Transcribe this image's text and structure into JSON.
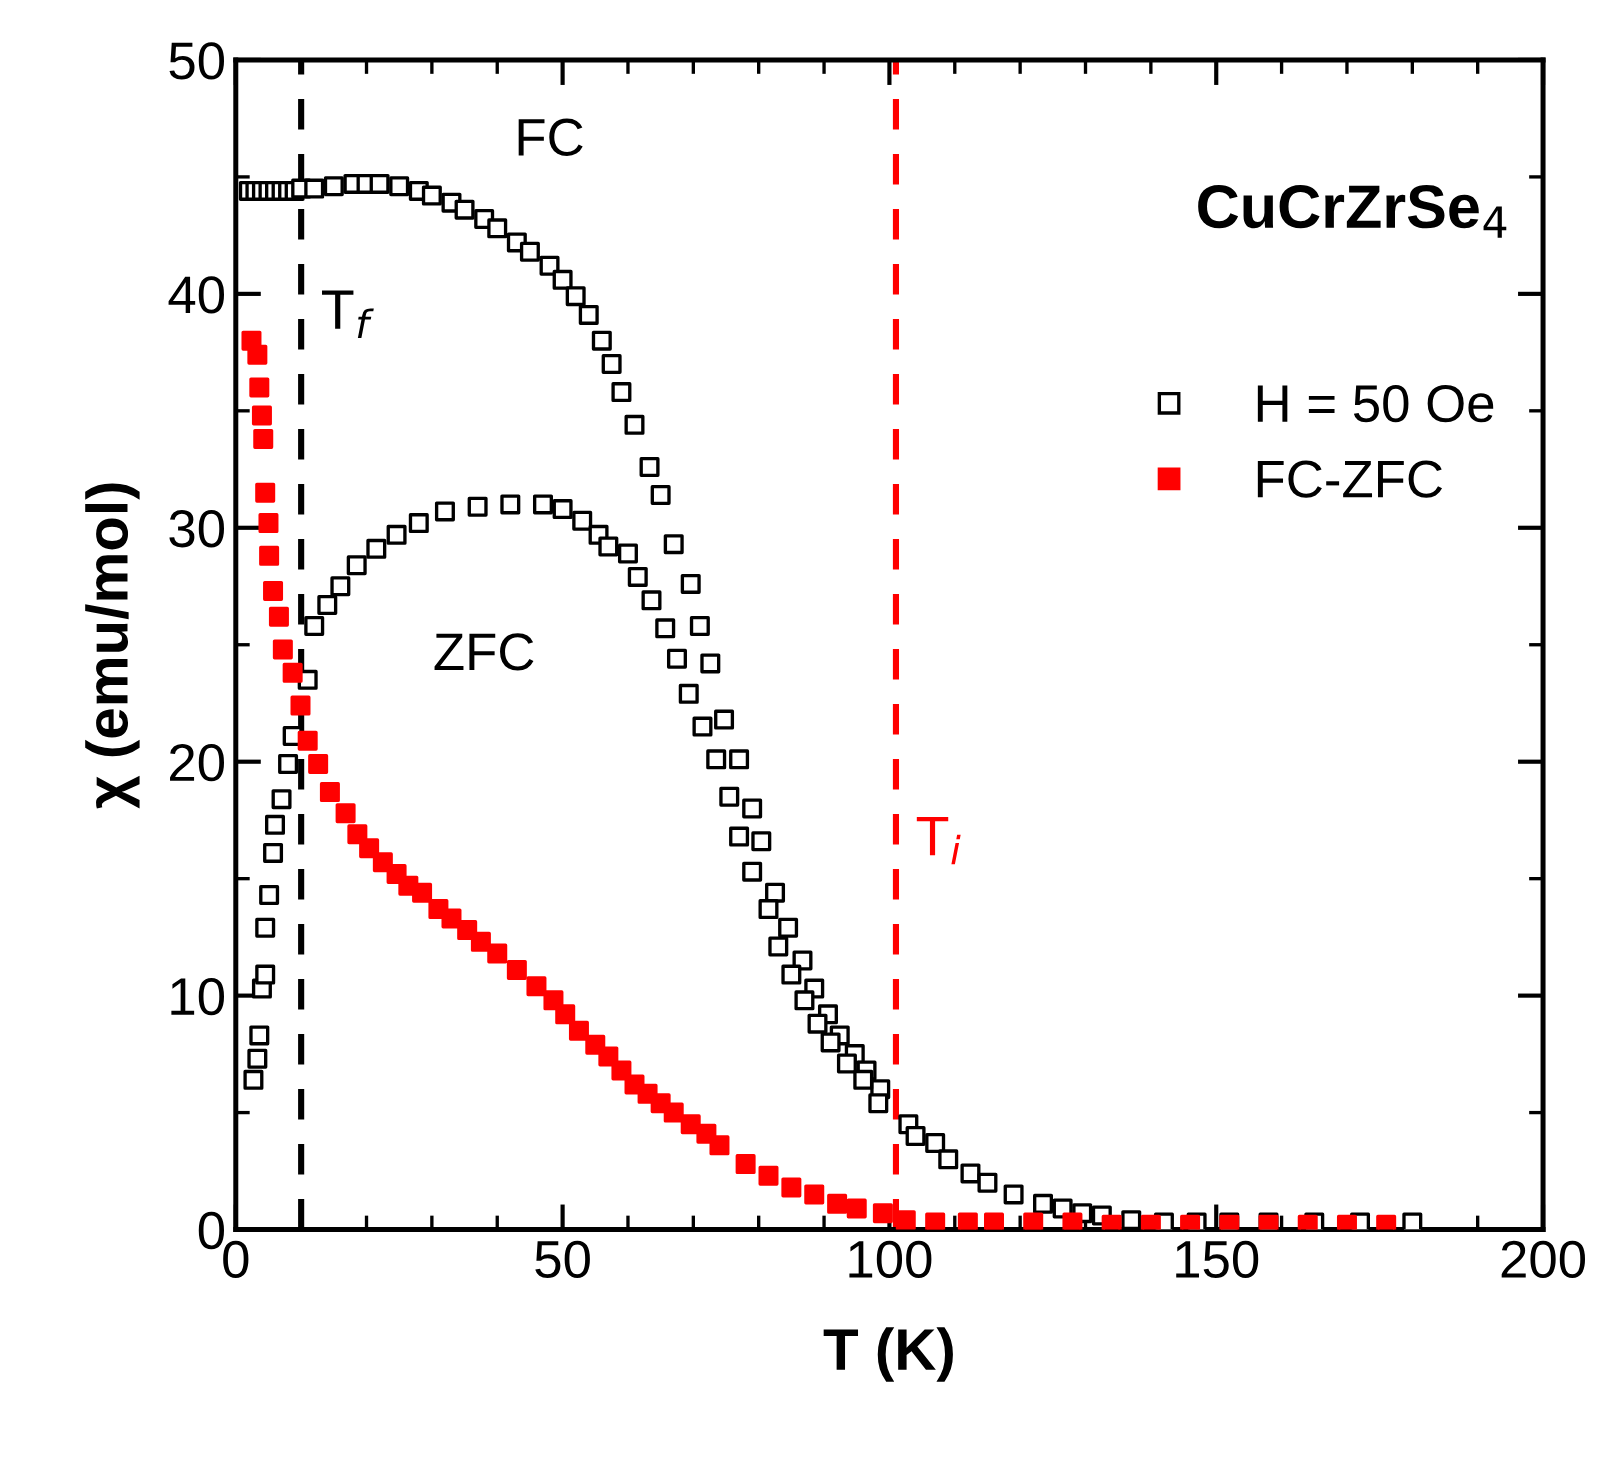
{
  "chart_data": {
    "type": "scatter",
    "xlabel": "T (K)",
    "ylabel": "χ (emu/mol)",
    "xlim": [
      0,
      200
    ],
    "ylim": [
      0,
      50
    ],
    "xticks": [
      0,
      50,
      100,
      150,
      200
    ],
    "yticks": [
      0,
      10,
      20,
      30,
      40,
      50
    ],
    "marker": "square",
    "legend": "right",
    "grid": false,
    "annotations": [
      "FC",
      "ZFC",
      "CuCrZrSe$_{4}$"
    ],
    "ref_lines": [
      {
        "axis": "x",
        "value": 10,
        "label": "T$_{f}$",
        "color": "#000000",
        "line_style": "dashed"
      },
      {
        "axis": "x",
        "value": 101,
        "label": "T$_{i}$",
        "color": "#ff0000",
        "line_style": "dashed"
      }
    ],
    "series": [
      {
        "name": "H = 50 Oe",
        "color": "#000000",
        "x": [
          2,
          3,
          4,
          5,
          6,
          7,
          8,
          9,
          10,
          12,
          15,
          18,
          20,
          22,
          25,
          28,
          30,
          33,
          35,
          38,
          40,
          43,
          45,
          48,
          50,
          52,
          54,
          56,
          57.5,
          59,
          61,
          63.3,
          65,
          67,
          69.6,
          71,
          72.6,
          74.7,
          77,
          79,
          80.4,
          82.5,
          84.5,
          86.7,
          88.5,
          90.6,
          92.4,
          94.7,
          96.5,
          98.6,
          102.9,
          104,
          107,
          109,
          112.4,
          115,
          119,
          123.5,
          126.5,
          129.5,
          132.5,
          137,
          142,
          147,
          152,
          158,
          165,
          172,
          180
        ],
        "values": [
          44.4,
          44.4,
          44.4,
          44.4,
          44.4,
          44.4,
          44.4,
          44.4,
          44.5,
          44.5,
          44.6,
          44.7,
          44.7,
          44.7,
          44.6,
          44.4,
          44.2,
          43.9,
          43.6,
          43.2,
          42.8,
          42.2,
          41.8,
          41.2,
          40.6,
          39.9,
          39.1,
          38.0,
          37.0,
          35.8,
          34.4,
          32.6,
          31.4,
          29.3,
          27.6,
          25.8,
          24.2,
          21.8,
          20.1,
          18.0,
          16.6,
          14.4,
          12.9,
          11.5,
          10.3,
          9.2,
          8.3,
          7.5,
          6.8,
          6.0,
          4.5,
          4.0,
          3.7,
          3.0,
          2.4,
          2.0,
          1.5,
          1.1,
          0.9,
          0.7,
          0.6,
          0.4,
          0.3,
          0.3,
          0.3,
          0.3,
          0.3,
          0.3,
          0.3
        ]
      },
      {
        "color": "#000000",
        "x": [
          2.7,
          3.3,
          3.6,
          4,
          4.5,
          4.5,
          5.1,
          5.7,
          6,
          7,
          8,
          8.7,
          10.5,
          11,
          12,
          14,
          16,
          18.5,
          21.5,
          24.6,
          28,
          32,
          37,
          42,
          47,
          50,
          53,
          55.5,
          57,
          60,
          61.5,
          63.6,
          65.7,
          67.5,
          69.3,
          71.4,
          73.5,
          75.5,
          77,
          79,
          81.5,
          83,
          85,
          87,
          89,
          91,
          93.5,
          96,
          98.3
        ],
        "values": [
          6.4,
          7.3,
          8.3,
          10.3,
          10.9,
          12.9,
          14.3,
          16.1,
          17.3,
          18.4,
          19.9,
          21.1,
          null,
          23.5,
          25.8,
          26.7,
          27.5,
          28.4,
          29.1,
          29.7,
          30.2,
          30.7,
          30.9,
          31.0,
          31.0,
          30.8,
          30.3,
          29.7,
          29.2,
          28.9,
          27.9,
          26.9,
          25.7,
          24.4,
          22.9,
          21.5,
          20.1,
          18.5,
          16.8,
          15.3,
          13.7,
          12.1,
          10.9,
          9.8,
          8.8,
          8.0,
          7.1,
          6.4,
          5.4
        ]
      },
      {
        "name": "FC-ZFC",
        "color": "#ff0000",
        "x": [
          2.4,
          3.3,
          3.6,
          4,
          4.2,
          4.5,
          5,
          5.1,
          5.7,
          6.6,
          7.2,
          8.7,
          9.9,
          11,
          12.6,
          14.4,
          16.8,
          18.6,
          20.4,
          22.5,
          24.6,
          26.4,
          28.5,
          31,
          33,
          35.4,
          37.5,
          40,
          43,
          46,
          48.6,
          50.4,
          52.5,
          55,
          57,
          59,
          61,
          63,
          65,
          67,
          69.6,
          72,
          74,
          78,
          81.5,
          85,
          88.5,
          92,
          95,
          99,
          102.5,
          107,
          112,
          116,
          122,
          128,
          134,
          140,
          146,
          152,
          158,
          164,
          170,
          176
        ],
        "values": [
          38.0,
          37.4,
          36.0,
          34.8,
          33.8,
          31.5,
          30.2,
          28.8,
          27.3,
          26.2,
          24.8,
          23.8,
          22.4,
          20.9,
          19.9,
          18.7,
          17.8,
          16.9,
          16.3,
          15.7,
          15.2,
          14.7,
          14.4,
          13.7,
          13.3,
          12.8,
          12.3,
          11.8,
          11.1,
          10.4,
          9.8,
          9.2,
          8.5,
          7.9,
          7.4,
          6.8,
          6.2,
          5.8,
          5.4,
          5.0,
          4.5,
          4.1,
          3.6,
          2.8,
          2.3,
          1.8,
          1.5,
          1.1,
          0.9,
          0.7,
          0.4,
          0.3,
          0.3,
          0.3,
          0.3,
          0.3,
          0.2,
          0.2,
          0.2,
          0.2,
          0.2,
          0.2,
          0.2,
          0.2
        ]
      }
    ]
  }
}
